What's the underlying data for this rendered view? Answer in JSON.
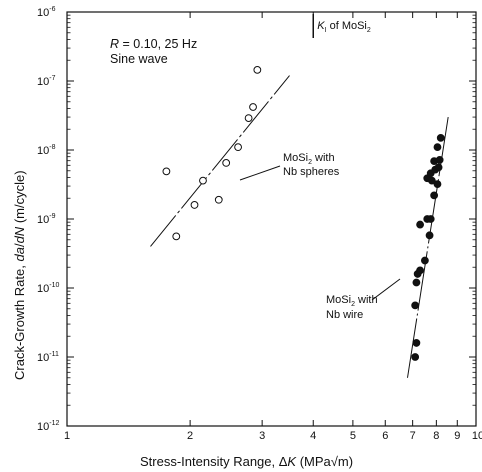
{
  "chart_data": {
    "type": "scatter",
    "xlabel": "Stress-Intensity Range, ΔK (MPa√m)",
    "ylabel": "Crack-Growth Rate, da/dN (m/cycle)",
    "xscale": "log",
    "yscale": "log",
    "xlim": [
      1,
      10
    ],
    "ylim": [
      1e-12,
      1e-06
    ],
    "x_ticks": [
      {
        "value": 1,
        "label": "1"
      },
      {
        "value": 2,
        "label": "2"
      },
      {
        "value": 3,
        "label": "3"
      },
      {
        "value": 4,
        "label": "4"
      },
      {
        "value": 5,
        "label": "5"
      },
      {
        "value": 6,
        "label": "6"
      },
      {
        "value": 7,
        "label": "7"
      },
      {
        "value": 8,
        "label": "8"
      },
      {
        "value": 9,
        "label": "9"
      },
      {
        "value": 10,
        "label": "10"
      }
    ],
    "y_ticks": [
      {
        "value": 1e-12,
        "base": "10",
        "exp": "-12"
      },
      {
        "value": 1e-11,
        "base": "10",
        "exp": "-11"
      },
      {
        "value": 1e-10,
        "base": "10",
        "exp": "-10"
      },
      {
        "value": 1e-09,
        "base": "10",
        "exp": "-9"
      },
      {
        "value": 1e-08,
        "base": "10",
        "exp": "-8"
      },
      {
        "value": 1e-07,
        "base": "10",
        "exp": "-7"
      },
      {
        "value": 1e-06,
        "base": "10",
        "exp": "-6"
      }
    ],
    "conditions": {
      "line1": "R = 0.10, 25 Hz",
      "line2": "Sine wave"
    },
    "ki_marker": {
      "x": 4.0,
      "label": "K",
      "label_sub": "I",
      "label_rest": " of MoSi",
      "label_sub2": "2"
    },
    "series": [
      {
        "name_line1": "MoSi",
        "name_sub": "2",
        "name_rest": " with",
        "name_line2": "Nb spheres",
        "marker": "open-circle",
        "points": [
          {
            "x": 1.75,
            "y": 4.9e-09
          },
          {
            "x": 1.85,
            "y": 5.6e-10
          },
          {
            "x": 2.05,
            "y": 1.6e-09
          },
          {
            "x": 2.15,
            "y": 3.6e-09
          },
          {
            "x": 2.35,
            "y": 1.9e-09
          },
          {
            "x": 2.45,
            "y": 6.5e-09
          },
          {
            "x": 2.62,
            "y": 1.1e-08
          },
          {
            "x": 2.78,
            "y": 2.9e-08
          },
          {
            "x": 2.85,
            "y": 4.2e-08
          },
          {
            "x": 2.92,
            "y": 1.45e-07
          }
        ],
        "fit": [
          {
            "x": 1.6,
            "y": 4e-10
          },
          {
            "x": 3.5,
            "y": 1.2e-07
          }
        ]
      },
      {
        "name_line1": "MoSi",
        "name_sub": "2",
        "name_rest": " with",
        "name_line2": "Nb wire",
        "marker": "filled-circle",
        "points": [
          {
            "x": 7.1,
            "y": 1e-11
          },
          {
            "x": 7.15,
            "y": 1.6e-11
          },
          {
            "x": 7.1,
            "y": 5.6e-11
          },
          {
            "x": 7.15,
            "y": 1.2e-10
          },
          {
            "x": 7.2,
            "y": 1.6e-10
          },
          {
            "x": 7.3,
            "y": 1.8e-10
          },
          {
            "x": 7.5,
            "y": 2.5e-10
          },
          {
            "x": 7.3,
            "y": 8.3e-10
          },
          {
            "x": 7.7,
            "y": 5.8e-10
          },
          {
            "x": 7.6,
            "y": 1e-09
          },
          {
            "x": 7.75,
            "y": 1e-09
          },
          {
            "x": 7.9,
            "y": 2.2e-09
          },
          {
            "x": 7.6,
            "y": 3.9e-09
          },
          {
            "x": 7.8,
            "y": 3.6e-09
          },
          {
            "x": 8.05,
            "y": 3.2e-09
          },
          {
            "x": 7.75,
            "y": 4.6e-09
          },
          {
            "x": 7.95,
            "y": 5.2e-09
          },
          {
            "x": 8.1,
            "y": 5.6e-09
          },
          {
            "x": 7.9,
            "y": 6.9e-09
          },
          {
            "x": 8.15,
            "y": 7.2e-09
          },
          {
            "x": 8.05,
            "y": 1.1e-08
          },
          {
            "x": 8.2,
            "y": 1.5e-08
          }
        ],
        "fit": [
          {
            "x": 6.8,
            "y": 5e-12
          },
          {
            "x": 8.55,
            "y": 3e-08
          }
        ]
      }
    ]
  }
}
